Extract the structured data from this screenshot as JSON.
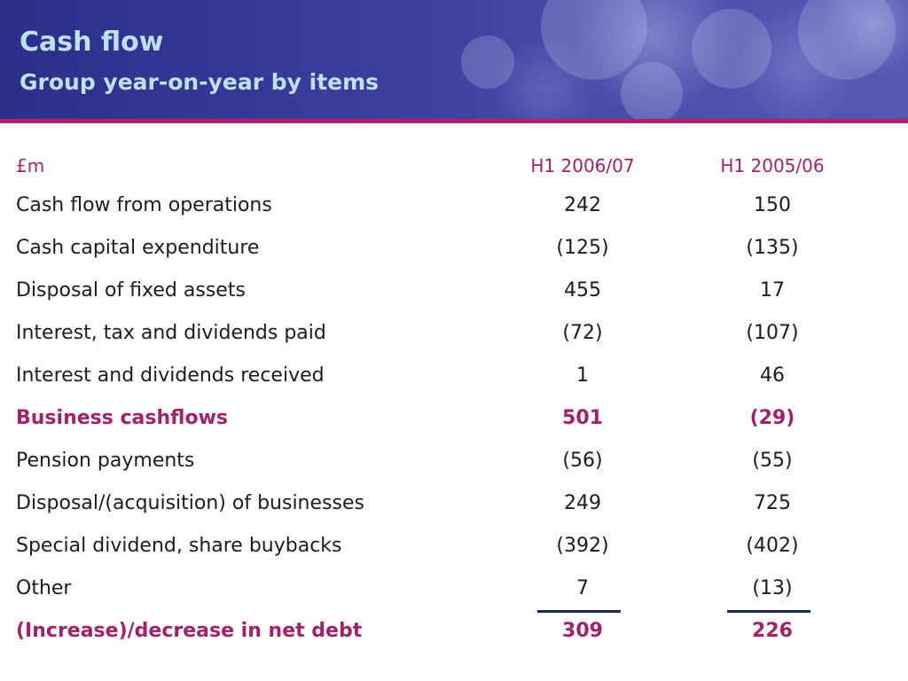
{
  "header": {
    "title": "Cash flow",
    "subtitle": "Group year-on-year by items"
  },
  "table": {
    "unit_label": "£m",
    "columns": [
      "H1 2006/07",
      "H1 2005/06"
    ],
    "rows": [
      {
        "label": "Cash flow from operations",
        "v1": "242",
        "v2": "150"
      },
      {
        "label": "Cash capital expenditure",
        "v1": "(125)",
        "v2": "(135)"
      },
      {
        "label": "Disposal of fixed assets",
        "v1": "455",
        "v2": "17"
      },
      {
        "label": "Interest, tax and dividends paid",
        "v1": "(72)",
        "v2": "(107)"
      },
      {
        "label": "Interest and dividends received",
        "v1": "1",
        "v2": "46"
      },
      {
        "label": "Business cashflows",
        "v1": "501",
        "v2": "(29)"
      },
      {
        "label": "Pension payments",
        "v1": "(56)",
        "v2": "(55)"
      },
      {
        "label": "Disposal/(acquisition) of businesses",
        "v1": "249",
        "v2": "725"
      },
      {
        "label": "Special dividend, share buybacks",
        "v1": "(392)",
        "v2": "(402)"
      },
      {
        "label": "Other",
        "v1": "7",
        "v2": "(13)"
      },
      {
        "label": "(Increase)/decrease in net debt",
        "v1": "309",
        "v2": "226"
      }
    ]
  },
  "colors": {
    "header_bg": "#3a3d9c",
    "title_text": "#bfe0f2",
    "accent": "#a0226a",
    "header_rule": "#b0226e",
    "body_text": "#1c1c1c"
  }
}
